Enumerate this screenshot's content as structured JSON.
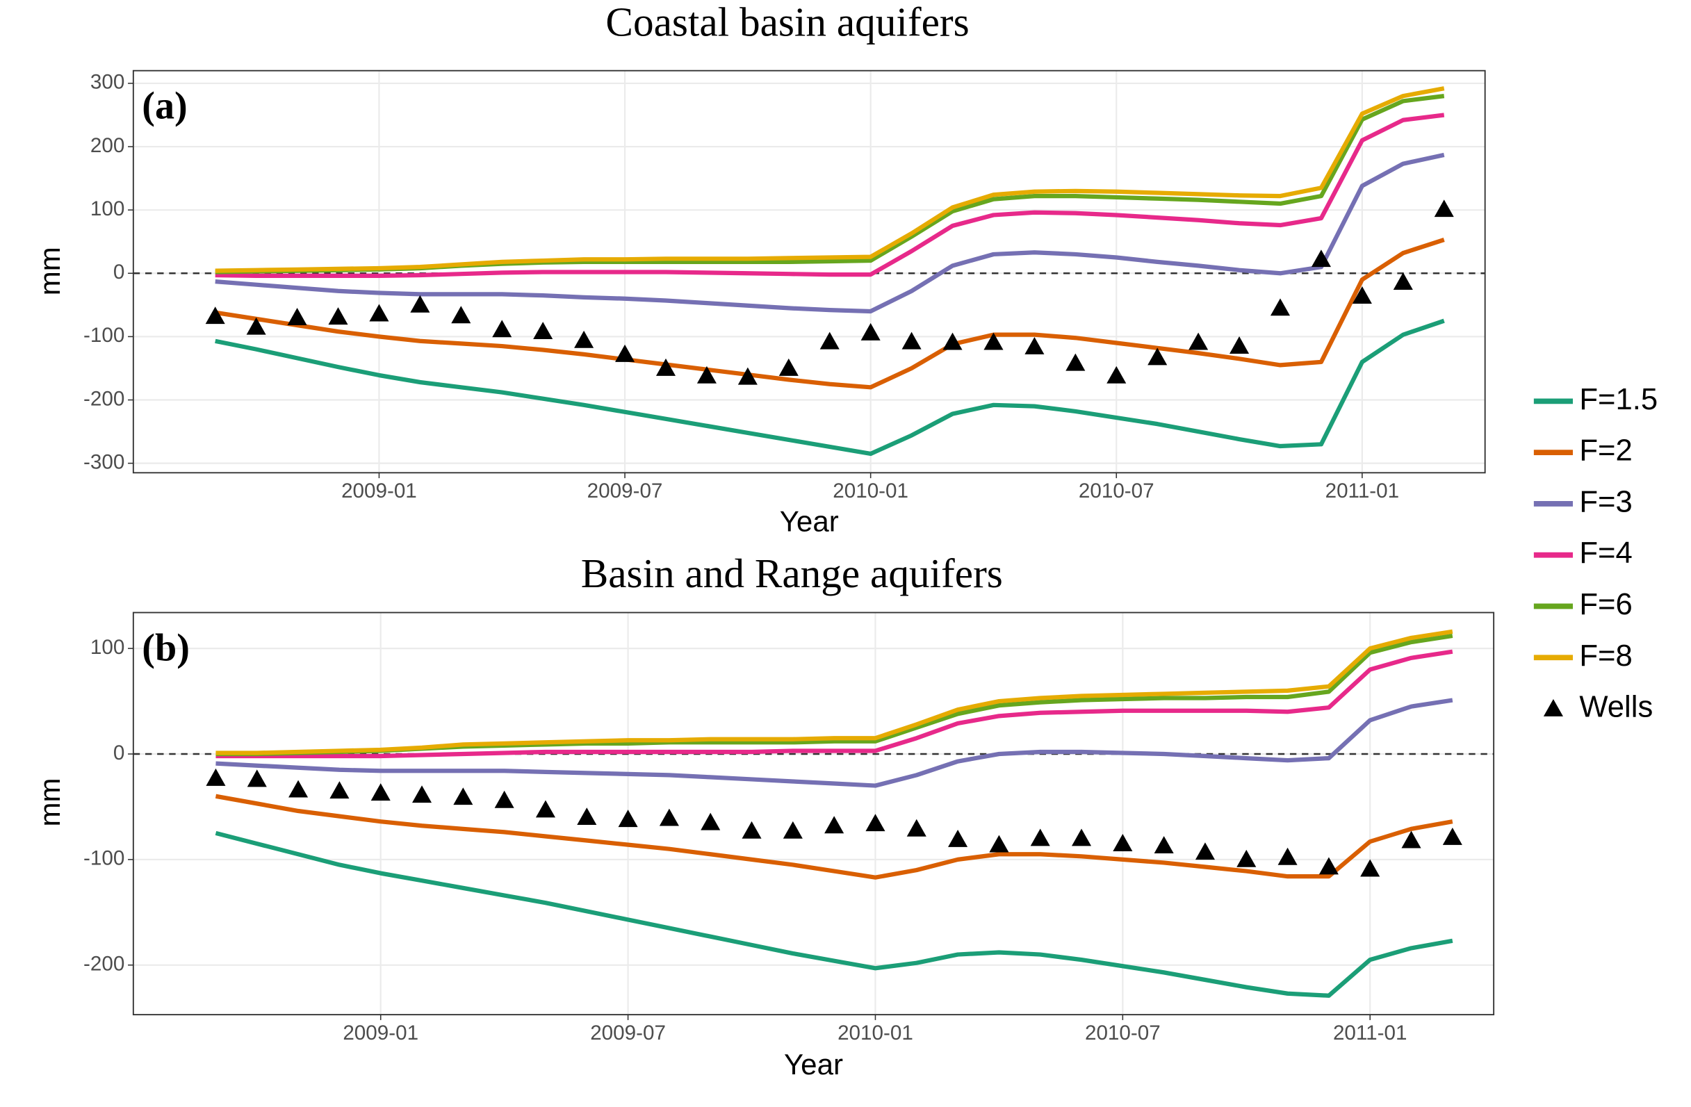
{
  "chart_data": [
    {
      "type": "line",
      "title": "Coastal basin aquifers",
      "annotation": "(a)",
      "xlabel": "Year",
      "ylabel": "mm",
      "x": [
        "2008-09",
        "2008-10",
        "2008-11",
        "2008-12",
        "2009-01",
        "2009-02",
        "2009-03",
        "2009-04",
        "2009-05",
        "2009-06",
        "2009-07",
        "2009-08",
        "2009-09",
        "2009-10",
        "2009-11",
        "2009-12",
        "2010-01",
        "2010-02",
        "2010-03",
        "2010-04",
        "2010-05",
        "2010-06",
        "2010-07",
        "2010-08",
        "2010-09",
        "2010-10",
        "2010-11",
        "2010-12",
        "2011-01",
        "2011-02",
        "2011-03"
      ],
      "xlim": [
        "2008-07",
        "2011-04"
      ],
      "xticks": [
        "2009-01",
        "2009-07",
        "2010-01",
        "2010-07",
        "2011-01"
      ],
      "ylim": [
        -315,
        320
      ],
      "yticks": [
        -300,
        -200,
        -100,
        0,
        100,
        200,
        300
      ],
      "hline": 0,
      "grid": true,
      "legend": "right",
      "series": [
        {
          "name": "F=1.5",
          "color": "#1b9e77",
          "values": [
            -107,
            -120,
            -134,
            -148,
            -161,
            -172,
            -180,
            -188,
            -198,
            -208,
            -219,
            -230,
            -241,
            -252,
            -263,
            -274,
            -285,
            -256,
            -222,
            -208,
            -210,
            -218,
            -228,
            -238,
            -250,
            -262,
            -273,
            -270,
            -140,
            -97,
            -75
          ]
        },
        {
          "name": "F=2",
          "color": "#d95f02",
          "values": [
            -62,
            -72,
            -82,
            -92,
            -100,
            -107,
            -111,
            -115,
            -121,
            -128,
            -136,
            -144,
            -152,
            -160,
            -168,
            -175,
            -180,
            -150,
            -112,
            -97,
            -97,
            -102,
            -110,
            -118,
            -126,
            -135,
            -145,
            -140,
            -10,
            32,
            53
          ]
        },
        {
          "name": "F=3",
          "color": "#7570b3",
          "values": [
            -13,
            -18,
            -23,
            -28,
            -31,
            -33,
            -33,
            -33,
            -35,
            -38,
            -40,
            -43,
            -47,
            -51,
            -55,
            -58,
            -60,
            -28,
            12,
            30,
            33,
            30,
            25,
            18,
            12,
            5,
            0,
            10,
            138,
            173,
            187
          ]
        },
        {
          "name": "F=4",
          "color": "#e7298a",
          "values": [
            -3,
            -4,
            -4,
            -4,
            -4,
            -3,
            -1,
            1,
            2,
            2,
            2,
            2,
            1,
            0,
            -1,
            -2,
            -2,
            35,
            75,
            92,
            96,
            95,
            92,
            88,
            84,
            79,
            76,
            87,
            210,
            242,
            250
          ]
        },
        {
          "name": "F=6",
          "color": "#66a61e",
          "values": [
            2,
            3,
            4,
            5,
            6,
            8,
            12,
            15,
            17,
            18,
            18,
            18,
            18,
            18,
            18,
            19,
            20,
            58,
            98,
            117,
            122,
            122,
            120,
            118,
            116,
            113,
            110,
            122,
            243,
            272,
            280
          ]
        },
        {
          "name": "F=8",
          "color": "#e6ab02",
          "values": [
            4,
            5,
            6,
            7,
            8,
            10,
            14,
            18,
            20,
            22,
            22,
            23,
            23,
            23,
            24,
            25,
            26,
            63,
            104,
            124,
            129,
            130,
            129,
            127,
            125,
            123,
            122,
            135,
            252,
            280,
            292
          ]
        },
        {
          "name": "Wells",
          "color": "#000000",
          "marker": "triangle",
          "values": [
            -68,
            -85,
            -70,
            -69,
            -64,
            -50,
            -67,
            -89,
            -92,
            -106,
            -128,
            -150,
            -162,
            -164,
            -150,
            -108,
            -94,
            -108,
            -109,
            -109,
            -116,
            -142,
            -162,
            -133,
            -109,
            -115,
            -55,
            22,
            -36,
            -14,
            101
          ]
        }
      ]
    },
    {
      "type": "line",
      "title": "Basin and Range aquifers",
      "annotation": "(b)",
      "xlabel": "Year",
      "ylabel": "mm",
      "x": [
        "2008-09",
        "2008-10",
        "2008-11",
        "2008-12",
        "2009-01",
        "2009-02",
        "2009-03",
        "2009-04",
        "2009-05",
        "2009-06",
        "2009-07",
        "2009-08",
        "2009-09",
        "2009-10",
        "2009-11",
        "2009-12",
        "2010-01",
        "2010-02",
        "2010-03",
        "2010-04",
        "2010-05",
        "2010-06",
        "2010-07",
        "2010-08",
        "2010-09",
        "2010-10",
        "2010-11",
        "2010-12",
        "2011-01",
        "2011-02",
        "2011-03"
      ],
      "xlim": [
        "2008-07",
        "2011-04"
      ],
      "xticks": [
        "2009-01",
        "2009-07",
        "2010-01",
        "2010-07",
        "2011-01"
      ],
      "ylim": [
        -247,
        134
      ],
      "yticks": [
        -200,
        -100,
        0,
        100
      ],
      "hline": 0,
      "grid": true,
      "series": [
        {
          "color": "#1b9e77",
          "values": [
            -75,
            -85,
            -95,
            -105,
            -113,
            -120,
            -127,
            -134,
            -141,
            -149,
            -157,
            -165,
            -173,
            -181,
            -189,
            -196,
            -203,
            -198,
            -190,
            -188,
            -190,
            -195,
            -201,
            -207,
            -214,
            -221,
            -227,
            -229,
            -195,
            -184,
            -177
          ]
        },
        {
          "color": "#d95f02",
          "values": [
            -40,
            -47,
            -54,
            -59,
            -64,
            -68,
            -71,
            -74,
            -78,
            -82,
            -86,
            -90,
            -95,
            -100,
            -105,
            -111,
            -117,
            -110,
            -100,
            -95,
            -95,
            -97,
            -100,
            -103,
            -107,
            -111,
            -116,
            -116,
            -83,
            -71,
            -64
          ]
        },
        {
          "color": "#7570b3",
          "values": [
            -9,
            -11,
            -13,
            -15,
            -16,
            -16,
            -16,
            -16,
            -17,
            -18,
            -19,
            -20,
            -22,
            -24,
            -26,
            -28,
            -30,
            -20,
            -7,
            0,
            2,
            2,
            1,
            0,
            -2,
            -4,
            -6,
            -4,
            32,
            45,
            51
          ]
        },
        {
          "color": "#e7298a",
          "values": [
            -2,
            -2,
            -2,
            -2,
            -2,
            -1,
            0,
            1,
            2,
            2,
            2,
            2,
            2,
            2,
            3,
            3,
            3,
            15,
            29,
            36,
            39,
            40,
            41,
            41,
            41,
            41,
            40,
            44,
            80,
            91,
            97
          ]
        },
        {
          "color": "#66a61e",
          "values": [
            0,
            0,
            1,
            2,
            3,
            5,
            7,
            8,
            9,
            10,
            10,
            11,
            11,
            11,
            11,
            12,
            12,
            25,
            38,
            46,
            49,
            51,
            52,
            53,
            53,
            54,
            54,
            59,
            96,
            106,
            112
          ]
        },
        {
          "color": "#e6ab02",
          "values": [
            1,
            1,
            2,
            3,
            4,
            6,
            9,
            10,
            11,
            12,
            13,
            13,
            14,
            14,
            14,
            15,
            15,
            28,
            42,
            50,
            53,
            55,
            56,
            57,
            58,
            59,
            60,
            64,
            100,
            110,
            116
          ]
        },
        {
          "color": "#000000",
          "marker": "triangle",
          "values": [
            -23,
            -24,
            -34,
            -35,
            -37,
            -39,
            -41,
            -44,
            -53,
            -60,
            -62,
            -61,
            -65,
            -73,
            -73,
            -68,
            -66,
            -71,
            -81,
            -86,
            -80,
            -80,
            -85,
            -87,
            -93,
            -100,
            -98,
            -107,
            -109,
            -82,
            -79
          ]
        }
      ]
    }
  ]
}
